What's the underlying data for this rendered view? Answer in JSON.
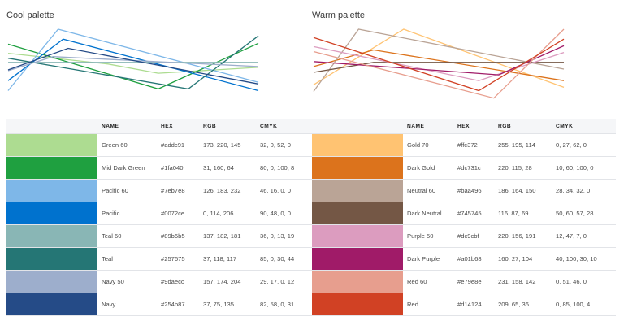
{
  "panels": {
    "cool": {
      "title": "Cool palette",
      "columns": [
        "NAME",
        "HEX",
        "RGB",
        "CMYK"
      ],
      "rows": [
        {
          "name": "Green 60",
          "hex": "#addc91",
          "rgb": "173, 220, 145",
          "cmyk": "32, 0, 52, 0",
          "color": "#addc91"
        },
        {
          "name": "Mid Dark Green",
          "hex": "#1fa040",
          "rgb": "31, 160, 64",
          "cmyk": "80, 0, 100, 8",
          "color": "#1fa040"
        },
        {
          "name": "Pacific 60",
          "hex": "#7eb7e8",
          "rgb": "126, 183, 232",
          "cmyk": "46, 16, 0, 0",
          "color": "#7eb7e8"
        },
        {
          "name": "Pacific",
          "hex": "#0072ce",
          "rgb": "0, 114, 206",
          "cmyk": "90, 48, 0, 0",
          "color": "#0072ce"
        },
        {
          "name": "Teal 60",
          "hex": "#89b6b5",
          "rgb": "137, 182, 181",
          "cmyk": "36, 0, 13, 19",
          "color": "#89b6b5"
        },
        {
          "name": "Teal",
          "hex": "#257675",
          "rgb": "37, 118, 117",
          "cmyk": "85, 0, 30, 44",
          "color": "#257675"
        },
        {
          "name": "Navy 50",
          "hex": "#9daecc",
          "rgb": "157, 174, 204",
          "cmyk": "29, 17, 0, 12",
          "color": "#9daecc"
        },
        {
          "name": "Navy",
          "hex": "#254b87",
          "rgb": "37, 75, 135",
          "cmyk": "82, 58, 0, 31",
          "color": "#254b87"
        }
      ]
    },
    "warm": {
      "title": "Warm palette",
      "columns": [
        "NAME",
        "HEX",
        "RGB",
        "CMYK"
      ],
      "rows": [
        {
          "name": "Gold 70",
          "hex": "#ffc372",
          "rgb": "255, 195, 114",
          "cmyk": "0, 27, 62, 0",
          "color": "#ffc372"
        },
        {
          "name": "Dark Gold",
          "hex": "#dc731c",
          "rgb": "220, 115, 28",
          "cmyk": "10, 60, 100, 0",
          "color": "#dc731c"
        },
        {
          "name": "Neutral 60",
          "hex": "#baa496",
          "rgb": "186, 164, 150",
          "cmyk": "28, 34, 32, 0",
          "color": "#baa496"
        },
        {
          "name": "Dark Neutral",
          "hex": "#745745",
          "rgb": "116, 87, 69",
          "cmyk": "50, 60, 57, 28",
          "color": "#745745"
        },
        {
          "name": "Purple 50",
          "hex": "#dc9cbf",
          "rgb": "220, 156, 191",
          "cmyk": "12, 47, 7, 0",
          "color": "#dc9cbf"
        },
        {
          "name": "Dark Purple",
          "hex": "#a01b68",
          "rgb": "160, 27, 104",
          "cmyk": "40, 100, 30, 10",
          "color": "#a01b68"
        },
        {
          "name": "Red 60",
          "hex": "#e79e8e",
          "rgb": "231, 158, 142",
          "cmyk": "0, 51, 46, 0",
          "color": "#e79e8e"
        },
        {
          "name": "Red",
          "hex": "#d14124",
          "rgb": "209, 65, 36",
          "cmyk": "0, 85, 100, 4",
          "color": "#d14124"
        }
      ]
    }
  },
  "chart_data": [
    {
      "type": "line",
      "title": "Cool palette",
      "xlabel": "",
      "ylabel": "",
      "grid": false,
      "legend": "none",
      "x": [
        0,
        1,
        2,
        3,
        4,
        5
      ],
      "series": [
        {
          "name": "Green 60",
          "color": "#addc91",
          "points": [
            [
              0,
              71
            ],
            [
              2,
              58
            ],
            [
              3,
              47
            ],
            [
              5,
              54
            ]
          ]
        },
        {
          "name": "Mid Dark Green",
          "color": "#1fa040",
          "points": [
            [
              0,
              82
            ],
            [
              3,
              28
            ],
            [
              5,
              83
            ]
          ]
        },
        {
          "name": "Pacific 60",
          "color": "#7eb7e8",
          "points": [
            [
              0,
              26
            ],
            [
              1,
              100
            ],
            [
              5,
              36
            ]
          ]
        },
        {
          "name": "Pacific",
          "color": "#0072ce",
          "points": [
            [
              0,
              38
            ],
            [
              1.1,
              88
            ],
            [
              5,
              26
            ]
          ]
        },
        {
          "name": "Teal 60",
          "color": "#89b6b5",
          "points": [
            [
              0,
              60
            ],
            [
              5,
              60
            ]
          ]
        },
        {
          "name": "Teal",
          "color": "#257675",
          "points": [
            [
              0,
              65
            ],
            [
              3.6,
              28
            ],
            [
              5,
              92
            ]
          ]
        },
        {
          "name": "Navy 50",
          "color": "#9daecc",
          "points": [
            [
              0,
              50
            ],
            [
              0.9,
              67
            ],
            [
              5,
              55
            ]
          ]
        },
        {
          "name": "Navy",
          "color": "#254b87",
          "points": [
            [
              0,
              51
            ],
            [
              1.2,
              77
            ],
            [
              5,
              34
            ]
          ]
        }
      ]
    },
    {
      "type": "line",
      "title": "Warm palette",
      "xlabel": "",
      "ylabel": "",
      "grid": false,
      "legend": "none",
      "x": [
        0,
        1,
        2,
        3,
        4,
        5
      ],
      "series": [
        {
          "name": "Gold 70",
          "color": "#ffc372",
          "points": [
            [
              0,
              33
            ],
            [
              1.8,
              100
            ],
            [
              5,
              30
            ]
          ]
        },
        {
          "name": "Dark Gold",
          "color": "#dc731c",
          "points": [
            [
              0,
              55
            ],
            [
              1.2,
              75
            ],
            [
              5,
              38
            ]
          ]
        },
        {
          "name": "Neutral 60",
          "color": "#baa496",
          "points": [
            [
              0,
              25
            ],
            [
              0.9,
              100
            ],
            [
              5,
              52
            ]
          ]
        },
        {
          "name": "Dark Neutral",
          "color": "#745745",
          "points": [
            [
              0,
              48
            ],
            [
              1.2,
              60
            ],
            [
              5,
              60
            ]
          ]
        },
        {
          "name": "Purple 50",
          "color": "#dc9cbf",
          "points": [
            [
              0,
              79
            ],
            [
              3.3,
              38
            ],
            [
              5,
              72
            ]
          ]
        },
        {
          "name": "Dark Purple",
          "color": "#a01b68",
          "points": [
            [
              0,
              61
            ],
            [
              3.7,
              45
            ],
            [
              5,
              80
            ]
          ]
        },
        {
          "name": "Red 60",
          "color": "#e79e8e",
          "points": [
            [
              0,
              73
            ],
            [
              3.6,
              17
            ],
            [
              5,
              100
            ]
          ]
        },
        {
          "name": "Red",
          "color": "#d14124",
          "points": [
            [
              0,
              90
            ],
            [
              3.3,
              26
            ],
            [
              5,
              88
            ]
          ]
        }
      ]
    }
  ]
}
